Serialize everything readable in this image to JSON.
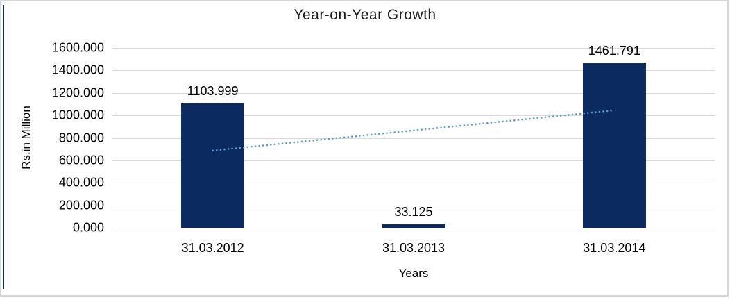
{
  "chart_data": {
    "type": "bar",
    "title": "Year-on-Year Growth",
    "xlabel": "Years",
    "ylabel": "Rs.in Million",
    "categories": [
      "31.03.2012",
      "31.03.2013",
      "31.03.2014"
    ],
    "values": [
      1103.999,
      33.125,
      1461.791
    ],
    "value_labels": [
      "1103.999",
      "33.125",
      "1461.791"
    ],
    "ylim": [
      0,
      1600
    ],
    "ytick_step": 200,
    "ytick_labels": [
      "0.000",
      "200.000",
      "400.000",
      "600.000",
      "800.000",
      "1000.000",
      "1200.000",
      "1400.000",
      "1600.000"
    ],
    "grid": true,
    "legend_position": "none",
    "trendline": {
      "style": "dotted",
      "start_value": 687,
      "end_value": 1045
    },
    "colors": {
      "bar": "#0a2a60",
      "trendline": "#5b9bd5",
      "gridline": "#d9d9d9",
      "text": "#000000",
      "frame_border": "#d6d6d6",
      "left_accent": "#0a2a60"
    }
  }
}
